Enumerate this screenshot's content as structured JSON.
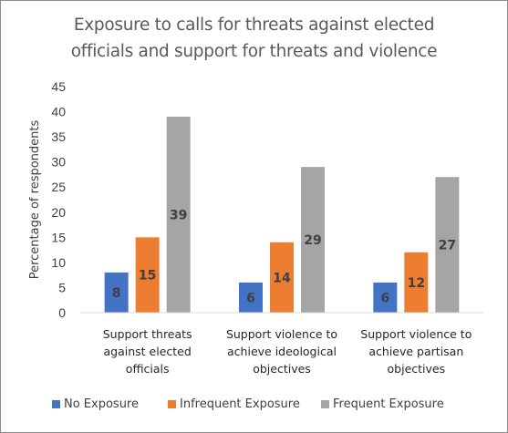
{
  "chart_data": {
    "type": "bar",
    "title_lines": [
      "Exposure to calls for threats against elected",
      "officials and support for threats and violence"
    ],
    "ylabel": "Percentage of respondents",
    "xlabel": "",
    "ylim": [
      0,
      45
    ],
    "yticks": [
      0,
      5,
      10,
      15,
      20,
      25,
      30,
      35,
      40,
      45
    ],
    "grid": false,
    "legend_position": "bottom",
    "categories": [
      [
        "Support threats",
        "against elected",
        "officials"
      ],
      [
        "Support violence to",
        "achieve ideological",
        "objectives"
      ],
      [
        "Support violence to",
        "achieve partisan",
        "objectives"
      ]
    ],
    "series": [
      {
        "name": "No Exposure",
        "color": "#4472c4",
        "values": [
          8,
          6,
          6
        ]
      },
      {
        "name": "Infrequent Exposure",
        "color": "#ed7d31",
        "values": [
          15,
          14,
          12
        ]
      },
      {
        "name": "Frequent Exposure",
        "color": "#a5a5a5",
        "values": [
          39,
          29,
          27
        ]
      }
    ]
  }
}
